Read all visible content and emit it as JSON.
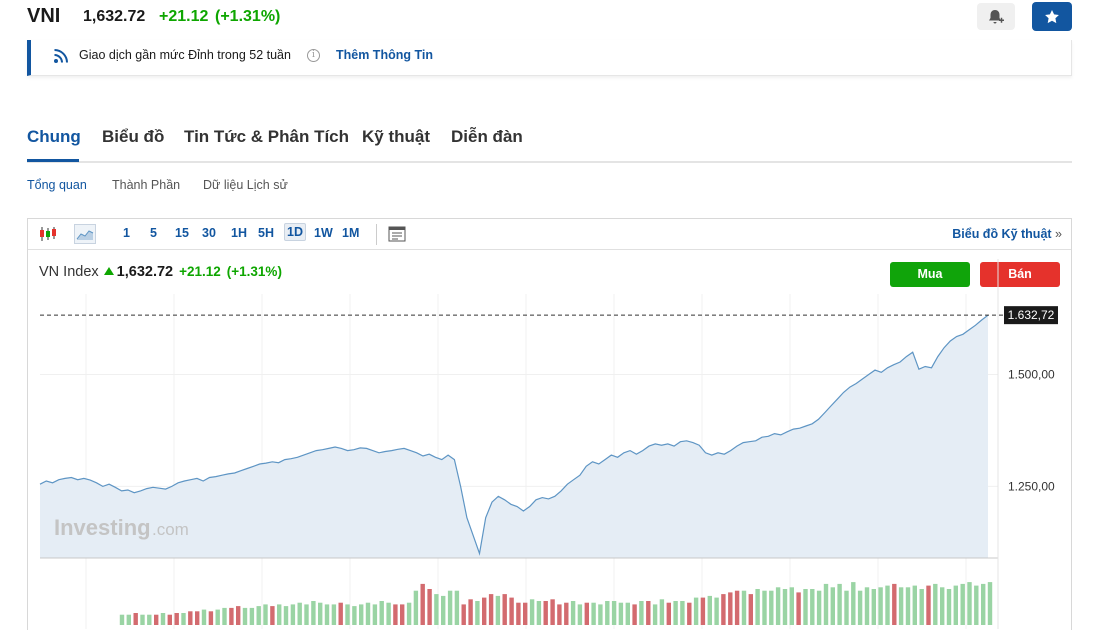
{
  "header": {
    "ticker": "VNI",
    "price": "1,632.72",
    "change": "+21.12",
    "change_pct": "(+1.31%)",
    "up_color": "#0ea600",
    "alert_icon": "bell-plus-icon",
    "watchlist_icon": "star-icon"
  },
  "notice": {
    "icon": "rss-icon",
    "text": "Giao dịch gần mức Đỉnh trong 52 tuần",
    "info_icon": "info-icon",
    "info_glyph": "i",
    "link": "Thêm Thông Tin"
  },
  "tabs": [
    {
      "label": "Chung",
      "active": true
    },
    {
      "label": "Biểu đồ"
    },
    {
      "label": "Tin Tức & Phân Tích"
    },
    {
      "label": "Kỹ thuật"
    },
    {
      "label": "Diễn đàn"
    }
  ],
  "subtabs": [
    {
      "label": "Tổng quan",
      "active": true
    },
    {
      "label": "Thành Phần"
    },
    {
      "label": "Dữ liệu Lịch sử"
    }
  ],
  "toolbar": {
    "chart_type_icons": [
      "candlestick-icon",
      "area-chart-icon"
    ],
    "periods": [
      "1",
      "5",
      "15",
      "30",
      "1H",
      "5H",
      "1D",
      "1W",
      "1M"
    ],
    "selected_period": "1D",
    "settings_icon": "chart-settings-icon",
    "tech_link": "Biểu đồ Kỹ thuật",
    "tech_link_glyph": "»"
  },
  "chart": {
    "name": "VN Index",
    "price": "1,632.72",
    "change": "+21.12",
    "change_pct": "(+1.31%)",
    "buy_label": "Mua",
    "sell_label": "Bán",
    "watermark": "Investing",
    "watermark_suffix": ".com",
    "last_label": "1.632,72"
  },
  "chart_data": {
    "type": "area",
    "series": [
      {
        "values": [
          1255,
          1262,
          1258,
          1265,
          1268,
          1270,
          1265,
          1268,
          1264,
          1258,
          1250,
          1255,
          1248,
          1240,
          1242,
          1236,
          1240,
          1245,
          1248,
          1246,
          1244,
          1250,
          1258,
          1262,
          1265,
          1268,
          1262,
          1270,
          1272,
          1275,
          1278,
          1280,
          1285,
          1290,
          1295,
          1300,
          1302,
          1305,
          1303,
          1310,
          1312,
          1315,
          1320,
          1325,
          1330,
          1332,
          1335,
          1338,
          1335,
          1330,
          1332,
          1336,
          1335,
          1330,
          1325,
          1328,
          1330,
          1333,
          1335,
          1330,
          1325,
          1318,
          1322,
          1315,
          1310,
          1320,
          1310,
          1250,
          1180,
          1140,
          1100,
          1180,
          1215,
          1228,
          1220,
          1210,
          1205,
          1195,
          1205,
          1220,
          1225,
          1222,
          1228,
          1240,
          1255,
          1265,
          1275,
          1295,
          1305,
          1300,
          1310,
          1320,
          1315,
          1325,
          1330,
          1322,
          1330,
          1340,
          1345,
          1342,
          1345,
          1340,
          1350,
          1352,
          1348,
          1342,
          1325,
          1320,
          1325,
          1322,
          1330,
          1340,
          1348,
          1350,
          1352,
          1360,
          1362,
          1368,
          1365,
          1372,
          1378,
          1380,
          1385,
          1390,
          1400,
          1415,
          1430,
          1445,
          1460,
          1472,
          1480,
          1490,
          1500,
          1510,
          1505,
          1515,
          1522,
          1528,
          1540,
          1550,
          1512,
          1518,
          1515,
          1540,
          1560,
          1575,
          1585,
          1590,
          1600,
          1610,
          1622,
          1632.72
        ],
        "color": "#5e95c4",
        "fill": "#e5edf5"
      }
    ],
    "ylim": [
      1090,
      1680
    ],
    "yticks": [
      1250,
      1500
    ],
    "ytick_labels": [
      "1.250,00",
      "1.500,00"
    ],
    "last_value": 1632.72,
    "last_label": "1.632,72",
    "grid": true,
    "volume": {
      "values": [
        6,
        6,
        7,
        6,
        6,
        6,
        7,
        6,
        7,
        7,
        8,
        8,
        9,
        8,
        9,
        10,
        10,
        11,
        10,
        10,
        11,
        12,
        11,
        12,
        11,
        12,
        13,
        12,
        14,
        13,
        12,
        12,
        13,
        12,
        11,
        12,
        13,
        12,
        14,
        13,
        12,
        12,
        13,
        20,
        24,
        21,
        18,
        17,
        20,
        20,
        12,
        15,
        14,
        16,
        18,
        17,
        18,
        16,
        13,
        13,
        15,
        14,
        14,
        15,
        12,
        13,
        14,
        12,
        13,
        13,
        12,
        14,
        14,
        13,
        13,
        12,
        14,
        14,
        12,
        15,
        13,
        14,
        14,
        13,
        16,
        16,
        17,
        16,
        18,
        19,
        20,
        20,
        18,
        21,
        20,
        20,
        22,
        21,
        22,
        19,
        21,
        21,
        20,
        24,
        22,
        24,
        20,
        25,
        20,
        22,
        21,
        22,
        23,
        24,
        22,
        22,
        23,
        21,
        23,
        24,
        22,
        21,
        23,
        24,
        25,
        23,
        24,
        25
      ],
      "up_color": "#9ad4a4",
      "down_color": "#d36b6f"
    }
  }
}
